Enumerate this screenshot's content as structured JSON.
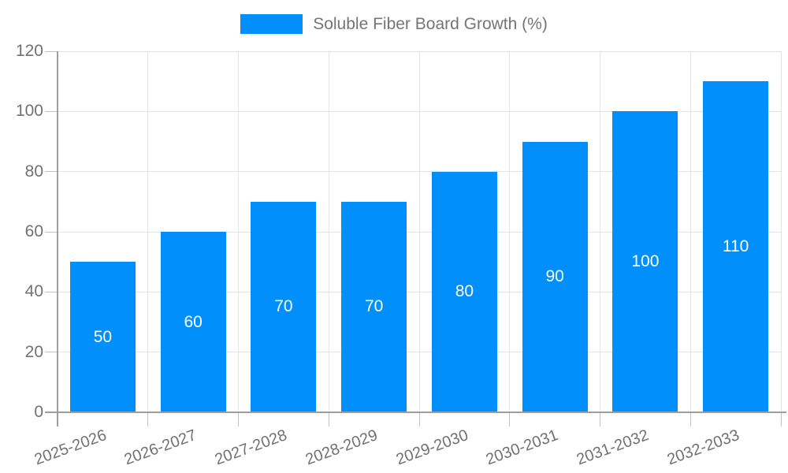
{
  "legend": {
    "label": "Soluble Fiber Board Growth (%)",
    "swatch_color": "#008FFB"
  },
  "chart_data": {
    "type": "bar",
    "title": "",
    "categories": [
      "2025-2026",
      "2026-2027",
      "2027-2028",
      "2028-2029",
      "2029-2030",
      "2030-2031",
      "2031-2032",
      "2032-2033"
    ],
    "series": [
      {
        "name": "Soluble Fiber Board Growth (%)",
        "color": "#008FFB",
        "values": [
          50,
          60,
          70,
          70,
          80,
          90,
          100,
          110
        ]
      }
    ],
    "value_labels": {
      "visible": true,
      "color": "#FFFFFF",
      "position": "center"
    },
    "xlabel": "",
    "ylabel": "",
    "ylim": [
      0,
      120
    ],
    "yticks": [
      0,
      20,
      40,
      60,
      80,
      100,
      120
    ],
    "grid": true,
    "x_label_rotation_deg": -20,
    "legend_position": "top-center",
    "colors": {
      "axis_line": "#9E9E9E",
      "tick": "#C2C2C2",
      "gridline": "#E4E4E4",
      "axis_text": "#717171",
      "legend_text": "#757575"
    }
  }
}
